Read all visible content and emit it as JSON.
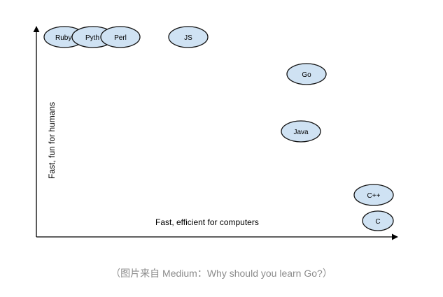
{
  "diagram": {
    "x_axis_label": "Fast, efficient for computers",
    "y_axis_label": "Fast, fun for humans",
    "bubble_fill": "#cfe2f3",
    "bubble_stroke": "#111111",
    "languages": [
      {
        "label": "Ruby"
      },
      {
        "label": "Pyth"
      },
      {
        "label": "Perl"
      },
      {
        "label": "JS"
      },
      {
        "label": "Go"
      },
      {
        "label": "Java"
      },
      {
        "label": "C++"
      },
      {
        "label": "C"
      }
    ]
  },
  "caption": "（图片来自 Medium：Why should you learn Go?）"
}
